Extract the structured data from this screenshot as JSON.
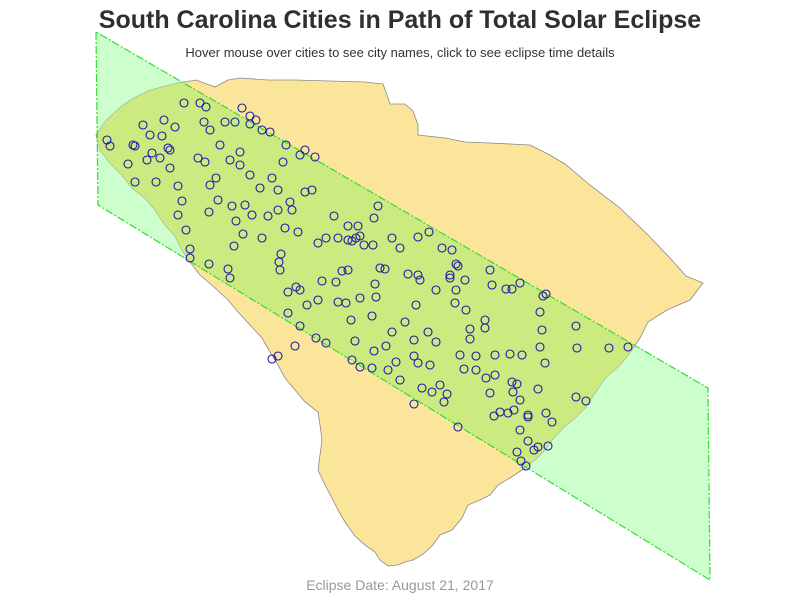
{
  "title": "South Carolina Cities in Path of Total Solar Eclipse",
  "subtitle": "Hover mouse over cities to see city names, click to see eclipse time details",
  "footer": "Eclipse Date: August 21, 2017",
  "colors": {
    "state_fill": "#fbe59a",
    "state_stroke": "#8a8a8a",
    "path_fill": "#ccffcc",
    "path_stroke": "#33dd33",
    "overlap_fill": "#cbea80",
    "city_stroke": "#1a1aaa"
  },
  "layers": {
    "state": "South Carolina",
    "eclipse_path": "path of totality",
    "cities": "city markers"
  }
}
